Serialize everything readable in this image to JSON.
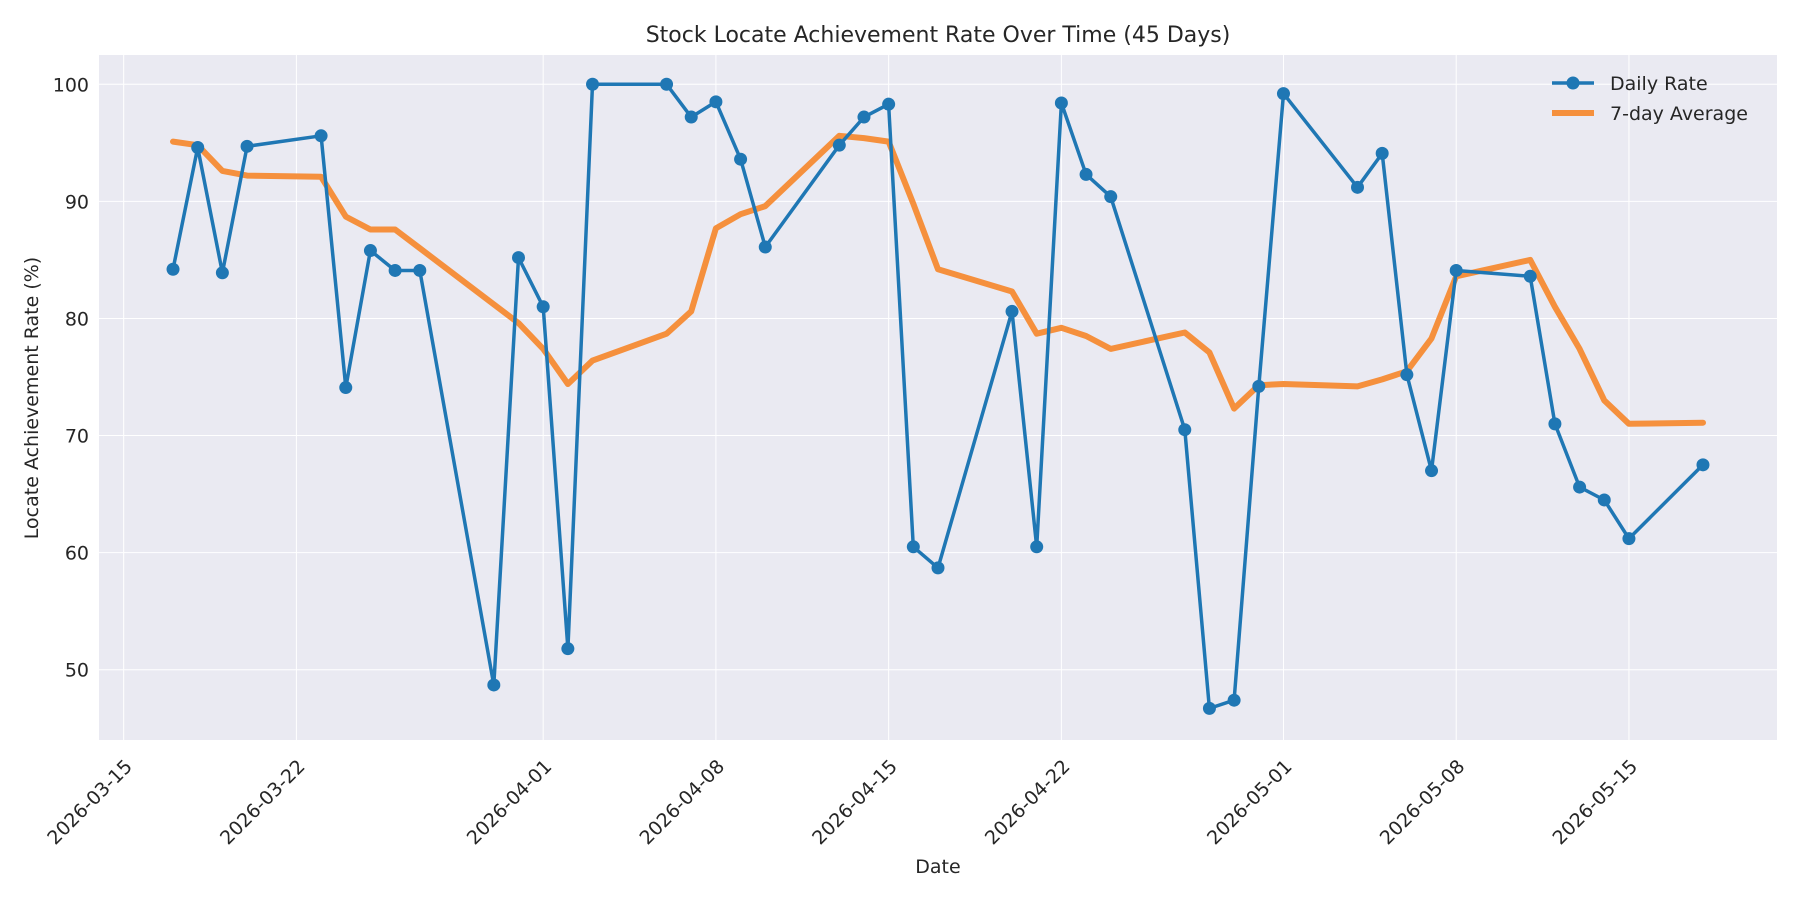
{
  "chart_data": {
    "type": "line",
    "title": "Stock Locate Achievement Rate Over Time (45 Days)",
    "xlabel": "Date",
    "ylabel": "Locate Achievement Rate (%)",
    "xlim": [
      "2026-03-14",
      "2026-05-21"
    ],
    "ylim": [
      44,
      102.5
    ],
    "yticks": [
      50,
      60,
      70,
      80,
      90,
      100
    ],
    "xticks": [
      "2026-03-15",
      "2026-03-22",
      "2026-04-01",
      "2026-04-08",
      "2026-04-15",
      "2026-04-22",
      "2026-05-01",
      "2026-05-08",
      "2026-05-15"
    ],
    "grid": true,
    "legend_position": "top-right",
    "background_color": "#eaeaf2",
    "series": [
      {
        "name": "Daily Rate",
        "color": "#1f77b4",
        "marker": "circle",
        "points": [
          [
            "2026-03-17",
            84.2
          ],
          [
            "2026-03-18",
            94.6
          ],
          [
            "2026-03-19",
            83.9
          ],
          [
            "2026-03-20",
            94.7
          ],
          [
            "2026-03-23",
            95.6
          ],
          [
            "2026-03-24",
            74.1
          ],
          [
            "2026-03-25",
            85.8
          ],
          [
            "2026-03-26",
            84.1
          ],
          [
            "2026-03-27",
            84.1
          ],
          [
            "2026-03-30",
            48.7
          ],
          [
            "2026-03-31",
            85.2
          ],
          [
            "2026-04-01",
            81.0
          ],
          [
            "2026-04-02",
            51.8
          ],
          [
            "2026-04-03",
            100.0
          ],
          [
            "2026-04-06",
            100.0
          ],
          [
            "2026-04-07",
            97.2
          ],
          [
            "2026-04-08",
            98.5
          ],
          [
            "2026-04-09",
            93.6
          ],
          [
            "2026-04-10",
            86.1
          ],
          [
            "2026-04-13",
            94.8
          ],
          [
            "2026-04-14",
            97.2
          ],
          [
            "2026-04-15",
            98.3
          ],
          [
            "2026-04-16",
            60.5
          ],
          [
            "2026-04-17",
            58.7
          ],
          [
            "2026-04-20",
            80.6
          ],
          [
            "2026-04-21",
            60.5
          ],
          [
            "2026-04-22",
            98.4
          ],
          [
            "2026-04-23",
            92.3
          ],
          [
            "2026-04-24",
            90.4
          ],
          [
            "2026-04-27",
            70.5
          ],
          [
            "2026-04-28",
            46.7
          ],
          [
            "2026-04-29",
            47.4
          ],
          [
            "2026-04-30",
            74.2
          ],
          [
            "2026-05-01",
            99.2
          ],
          [
            "2026-05-04",
            91.2
          ],
          [
            "2026-05-05",
            94.1
          ],
          [
            "2026-05-06",
            75.2
          ],
          [
            "2026-05-07",
            67.0
          ],
          [
            "2026-05-08",
            84.1
          ],
          [
            "2026-05-11",
            83.6
          ],
          [
            "2026-05-12",
            71.0
          ],
          [
            "2026-05-13",
            65.6
          ],
          [
            "2026-05-14",
            64.5
          ],
          [
            "2026-05-15",
            61.2
          ],
          [
            "2026-05-18",
            67.5
          ]
        ]
      },
      {
        "name": "7-day Average",
        "color": "#f5903d",
        "marker": "none",
        "points": [
          [
            "2026-03-17",
            95.1
          ],
          [
            "2026-03-18",
            94.8
          ],
          [
            "2026-03-19",
            92.6
          ],
          [
            "2026-03-20",
            92.2
          ],
          [
            "2026-03-23",
            92.1
          ],
          [
            "2026-03-24",
            88.7
          ],
          [
            "2026-03-25",
            87.6
          ],
          [
            "2026-03-26",
            87.6
          ],
          [
            "2026-03-27",
            86.0
          ],
          [
            "2026-03-30",
            81.2
          ],
          [
            "2026-03-31",
            79.6
          ],
          [
            "2026-04-01",
            77.4
          ],
          [
            "2026-04-02",
            74.4
          ],
          [
            "2026-04-03",
            76.4
          ],
          [
            "2026-04-06",
            78.7
          ],
          [
            "2026-04-07",
            80.6
          ],
          [
            "2026-04-08",
            87.7
          ],
          [
            "2026-04-09",
            88.9
          ],
          [
            "2026-04-10",
            89.6
          ],
          [
            "2026-04-13",
            95.6
          ],
          [
            "2026-04-14",
            95.4
          ],
          [
            "2026-04-15",
            95.1
          ],
          [
            "2026-04-16",
            89.8
          ],
          [
            "2026-04-17",
            84.2
          ],
          [
            "2026-04-20",
            82.3
          ],
          [
            "2026-04-21",
            78.7
          ],
          [
            "2026-04-22",
            79.2
          ],
          [
            "2026-04-23",
            78.5
          ],
          [
            "2026-04-24",
            77.4
          ],
          [
            "2026-04-27",
            78.8
          ],
          [
            "2026-04-28",
            77.1
          ],
          [
            "2026-04-29",
            72.3
          ],
          [
            "2026-04-30",
            74.3
          ],
          [
            "2026-05-01",
            74.4
          ],
          [
            "2026-05-04",
            74.2
          ],
          [
            "2026-05-05",
            74.8
          ],
          [
            "2026-05-06",
            75.5
          ],
          [
            "2026-05-07",
            78.3
          ],
          [
            "2026-05-08",
            83.6
          ],
          [
            "2026-05-11",
            85.0
          ],
          [
            "2026-05-12",
            81.0
          ],
          [
            "2026-05-13",
            77.4
          ],
          [
            "2026-05-14",
            73.0
          ],
          [
            "2026-05-15",
            71.0
          ],
          [
            "2026-05-18",
            71.1
          ]
        ]
      }
    ]
  }
}
